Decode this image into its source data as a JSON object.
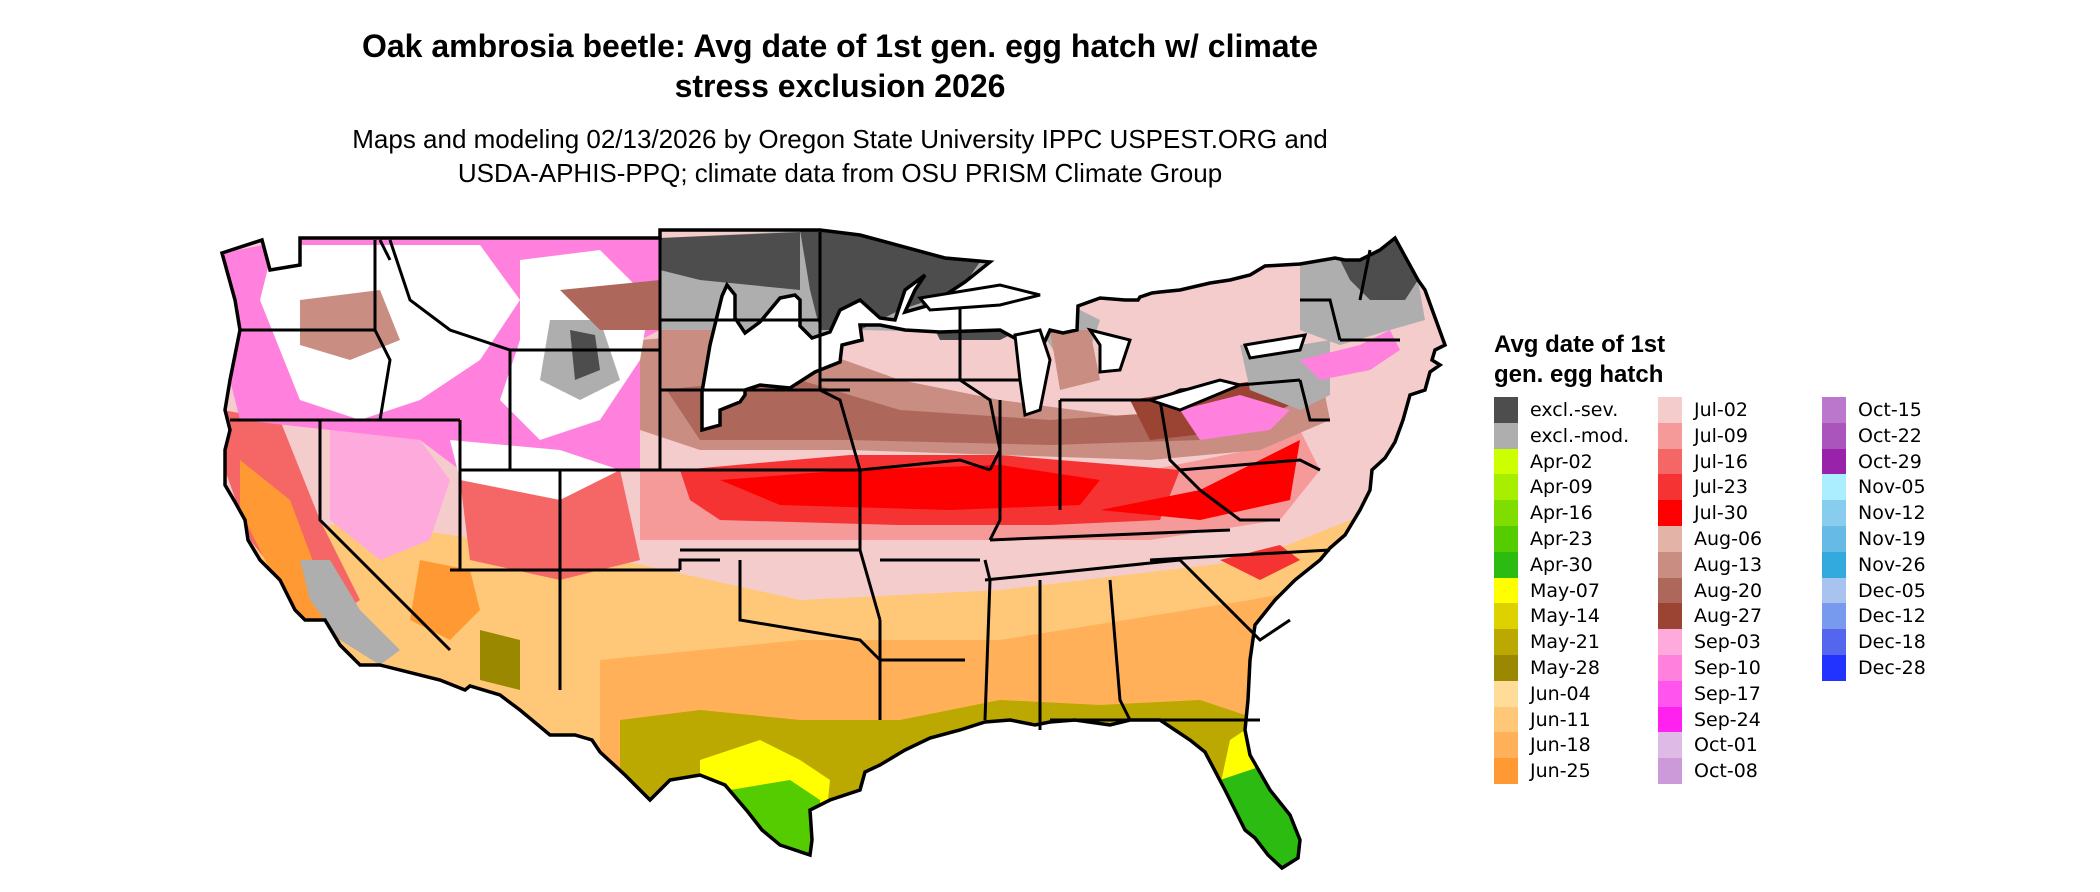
{
  "title_line1": "Oak ambrosia beetle: Avg date of 1st gen. egg hatch w/ climate",
  "title_line2": "stress exclusion 2026",
  "subtitle_line1": "Maps and modeling 02/13/2026 by Oregon State University IPPC USPEST.ORG and",
  "subtitle_line2": "USDA-APHIS-PPQ; climate data from OSU PRISM Climate Group",
  "map": {
    "region": "Contiguous United States",
    "outline_color": "#000000",
    "background_color": "#ffffff"
  },
  "legend": {
    "title_line1": "Avg date of 1st",
    "title_line2": "gen. egg hatch",
    "columns": [
      [
        {
          "label": "excl.-sev.",
          "color": "#4d4d4d"
        },
        {
          "label": "excl.-mod.",
          "color": "#aeaeae"
        },
        {
          "label": "Apr-02",
          "color": "#ccff00"
        },
        {
          "label": "Apr-09",
          "color": "#a8ee00"
        },
        {
          "label": "Apr-16",
          "color": "#7fdd00"
        },
        {
          "label": "Apr-23",
          "color": "#55cc00"
        },
        {
          "label": "Apr-30",
          "color": "#2bbb11"
        },
        {
          "label": "May-07",
          "color": "#ffff00"
        },
        {
          "label": "May-14",
          "color": "#ddd200"
        },
        {
          "label": "May-21",
          "color": "#bba800"
        },
        {
          "label": "May-28",
          "color": "#998800"
        },
        {
          "label": "Jun-04",
          "color": "#ffdd99"
        },
        {
          "label": "Jun-11",
          "color": "#ffc878"
        },
        {
          "label": "Jun-18",
          "color": "#ffb059"
        },
        {
          "label": "Jun-25",
          "color": "#ff9933"
        }
      ],
      [
        {
          "label": "Jul-02",
          "color": "#f5cccc"
        },
        {
          "label": "Jul-09",
          "color": "#f59999"
        },
        {
          "label": "Jul-16",
          "color": "#f56666"
        },
        {
          "label": "Jul-23",
          "color": "#f53333"
        },
        {
          "label": "Jul-30",
          "color": "#ff0000"
        },
        {
          "label": "Aug-06",
          "color": "#e3b3a8"
        },
        {
          "label": "Aug-13",
          "color": "#c98d82"
        },
        {
          "label": "Aug-20",
          "color": "#ad685b"
        },
        {
          "label": "Aug-27",
          "color": "#9b4434"
        },
        {
          "label": "Sep-03",
          "color": "#ffaadd"
        },
        {
          "label": "Sep-10",
          "color": "#ff80dd"
        },
        {
          "label": "Sep-17",
          "color": "#ff55ee"
        },
        {
          "label": "Sep-24",
          "color": "#ff22ee"
        },
        {
          "label": "Oct-01",
          "color": "#ddbbe6"
        },
        {
          "label": "Oct-08",
          "color": "#cc99d9"
        }
      ],
      [
        {
          "label": "Oct-15",
          "color": "#bb77cc"
        },
        {
          "label": "Oct-22",
          "color": "#aa55bb"
        },
        {
          "label": "Oct-29",
          "color": "#9922aa"
        },
        {
          "label": "Nov-05",
          "color": "#aaeeff"
        },
        {
          "label": "Nov-12",
          "color": "#88ccee"
        },
        {
          "label": "Nov-19",
          "color": "#66bbe6"
        },
        {
          "label": "Nov-26",
          "color": "#33aadd"
        },
        {
          "label": "Dec-05",
          "color": "#a8c4ee"
        },
        {
          "label": "Dec-12",
          "color": "#7799ee"
        },
        {
          "label": "Dec-18",
          "color": "#5566ee"
        },
        {
          "label": "Dec-28",
          "color": "#2233ff"
        }
      ]
    ]
  }
}
